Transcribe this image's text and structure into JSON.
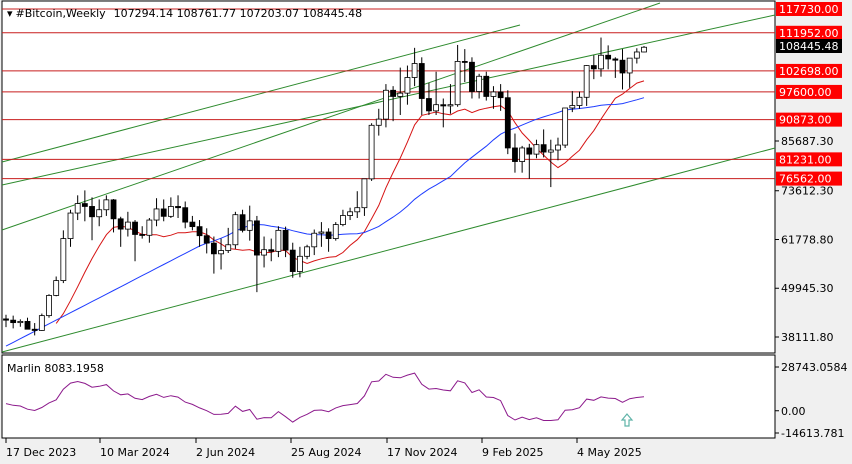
{
  "header": {
    "symbol": "#Bitcoin,Weekly",
    "ohlc": "10729 4.14 108761.77 107203.07 108445.48"
  },
  "colors": {
    "background": "#ffffff",
    "frame": "#f0f0f0",
    "bull_candle": "#ffffff",
    "bear_candle": "#000000",
    "level_line": "#c81e1e",
    "level_label_bg": "#ff0000",
    "channel": "#2e8b2e",
    "ma_fast": "#d61414",
    "ma_slow": "#1e3cff",
    "oscillator": "#8c1a8c",
    "arrow": "#5fb3a8"
  },
  "price_axis": {
    "ticks": [
      "85687.30",
      "73612.30",
      "61778.80",
      "49945.30",
      "38111.80"
    ],
    "current_price": "108445.48"
  },
  "levels": [
    {
      "price": 117730,
      "label": "117730.00"
    },
    {
      "price": 111952,
      "label": "111952.00"
    },
    {
      "price": 102698,
      "label": "102698.00"
    },
    {
      "price": 97600,
      "label": "97600.00"
    },
    {
      "price": 90873,
      "label": "90873.00"
    },
    {
      "price": 81231,
      "label": "81231.00"
    },
    {
      "price": 76562,
      "label": "76562.00"
    }
  ],
  "oscillator": {
    "label": "Marlin 8083.1958",
    "ticks": [
      "28743.0584",
      "0.00",
      "-14613.781"
    ]
  },
  "time_axis": {
    "labels": [
      "17 Dec 2023",
      "10 Mar 2024",
      "2 Jun 2024",
      "25 Aug 2024",
      "17 Nov 2024",
      "9 Feb 2025",
      "4 May 2025"
    ]
  },
  "chart_data": {
    "type": "candlestick",
    "title": "#Bitcoin,Weekly",
    "timeframe": "Weekly",
    "ohlc_last": {
      "open": 107294.14,
      "high": 108761.77,
      "low": 107203.07,
      "close": 108445.48
    },
    "start_date": "17 Dec 2023",
    "end_date": "2 Jun 2025",
    "candles": [
      [
        42500,
        43500,
        40500,
        42200
      ],
      [
        42200,
        43300,
        40200,
        41600
      ],
      [
        41600,
        42400,
        40600,
        41900
      ],
      [
        41900,
        42800,
        40200,
        40000
      ],
      [
        40000,
        41500,
        38500,
        39700
      ],
      [
        39700,
        43800,
        39600,
        43300
      ],
      [
        43300,
        48500,
        42800,
        48200
      ],
      [
        48200,
        52800,
        48000,
        51800
      ],
      [
        51800,
        64000,
        51200,
        62000
      ],
      [
        62000,
        69000,
        60000,
        68200
      ],
      [
        68200,
        72500,
        66500,
        70500
      ],
      [
        70500,
        73700,
        66200,
        69800
      ],
      [
        69800,
        72000,
        61600,
        67300
      ],
      [
        67300,
        71500,
        65000,
        69000
      ],
      [
        69000,
        72500,
        67500,
        71400
      ],
      [
        71400,
        71600,
        63500,
        66800
      ],
      [
        66800,
        67300,
        60000,
        64300
      ],
      [
        64300,
        68500,
        62500,
        66000
      ],
      [
        66000,
        66500,
        56500,
        63000
      ],
      [
        63000,
        65000,
        62000,
        62800
      ],
      [
        62800,
        67000,
        61000,
        66500
      ],
      [
        66500,
        71800,
        65000,
        69200
      ],
      [
        69200,
        71500,
        66200,
        67400
      ],
      [
        67400,
        72000,
        67000,
        69800
      ],
      [
        69800,
        72500,
        67000,
        69500
      ],
      [
        69500,
        71000,
        64500,
        66000
      ],
      [
        66000,
        67500,
        64000,
        64900
      ],
      [
        64900,
        66500,
        60000,
        62700
      ],
      [
        62700,
        64500,
        58400,
        60900
      ],
      [
        60900,
        62500,
        53500,
        58300
      ],
      [
        58300,
        62000,
        54500,
        59100
      ],
      [
        59100,
        64600,
        58500,
        60500
      ],
      [
        60500,
        68500,
        59500,
        67800
      ],
      [
        67800,
        69000,
        63500,
        64000
      ],
      [
        64000,
        70000,
        61500,
        66300
      ],
      [
        66300,
        67500,
        49000,
        58000
      ],
      [
        58000,
        62500,
        55000,
        59300
      ],
      [
        59300,
        62000,
        56500,
        58900
      ],
      [
        58900,
        65000,
        57500,
        64000
      ],
      [
        64000,
        64900,
        57500,
        59200
      ],
      [
        59200,
        61000,
        52500,
        54000
      ],
      [
        54000,
        60000,
        52600,
        57700
      ],
      [
        57700,
        60500,
        57000,
        60000
      ],
      [
        60000,
        64200,
        58000,
        63300
      ],
      [
        63300,
        66000,
        60000,
        63600
      ],
      [
        63600,
        64500,
        58800,
        62000
      ],
      [
        62000,
        66000,
        61500,
        65400
      ],
      [
        65400,
        69000,
        65000,
        67600
      ],
      [
        67600,
        69500,
        66500,
        68500
      ],
      [
        68500,
        73500,
        67000,
        69500
      ],
      [
        69500,
        76500,
        67500,
        76500
      ],
      [
        76500,
        90000,
        76000,
        89500
      ],
      [
        89500,
        93500,
        87000,
        91000
      ],
      [
        91000,
        99500,
        89000,
        98000
      ],
      [
        98000,
        99000,
        90500,
        96500
      ],
      [
        96500,
        103500,
        92000,
        97300
      ],
      [
        97300,
        104000,
        94500,
        101100
      ],
      [
        101100,
        108300,
        99000,
        104500
      ],
      [
        104500,
        106000,
        92000,
        96000
      ],
      [
        96000,
        99800,
        92000,
        93000
      ],
      [
        93000,
        102500,
        92000,
        94500
      ],
      [
        94500,
        96000,
        89000,
        94200
      ],
      [
        94200,
        99500,
        92300,
        94500
      ],
      [
        94500,
        109000,
        94000,
        105000
      ],
      [
        105000,
        108000,
        100000,
        104800
      ],
      [
        104800,
        106000,
        96000,
        97700
      ],
      [
        97700,
        102000,
        96000,
        101400
      ],
      [
        101400,
        102500,
        95500,
        96500
      ],
      [
        96500,
        99000,
        93500,
        97600
      ],
      [
        97600,
        99500,
        93000,
        96200
      ],
      [
        96200,
        98000,
        82500,
        84000
      ],
      [
        84000,
        87500,
        78000,
        80700
      ],
      [
        80700,
        84500,
        78000,
        84000
      ],
      [
        84000,
        85000,
        76500,
        82500
      ],
      [
        82500,
        86000,
        81500,
        84800
      ],
      [
        84800,
        88500,
        81700,
        83000
      ],
      [
        83000,
        86000,
        74500,
        83500
      ],
      [
        83500,
        86500,
        81000,
        84700
      ],
      [
        84700,
        93500,
        84000,
        93700
      ],
      [
        93700,
        97800,
        92700,
        94300
      ],
      [
        94300,
        97700,
        93500,
        96300
      ],
      [
        96300,
        104100,
        94200,
        104000
      ],
      [
        104000,
        106500,
        100700,
        103200
      ],
      [
        103200,
        110800,
        101300,
        106500
      ],
      [
        106500,
        108900,
        103100,
        105600
      ],
      [
        105600,
        106000,
        101000,
        105300
      ],
      [
        105300,
        108000,
        98200,
        102200
      ],
      [
        102200,
        105800,
        98600,
        105800
      ],
      [
        105800,
        108200,
        104500,
        107294
      ],
      [
        107294,
        108762,
        107203,
        108445
      ]
    ],
    "ma_fast_dates": [
      "17 Dec 2023",
      "10 Mar 2024",
      "2 Jun 2024",
      "25 Aug 2024",
      "17 Nov 2024",
      "9 Feb 2025",
      "4 May 2025"
    ],
    "levels": [
      117730,
      111952,
      102698,
      97600,
      90873,
      81231,
      76562
    ],
    "oscillator_name": "Marlin",
    "oscillator_value": 8083.1958
  }
}
